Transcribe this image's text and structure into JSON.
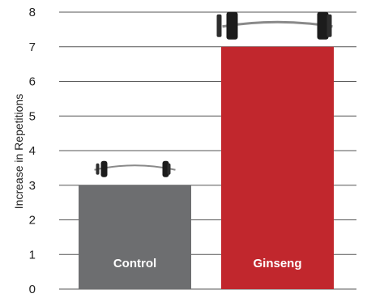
{
  "chart_data": {
    "type": "bar",
    "categories": [
      "Control",
      "Ginseng"
    ],
    "values": [
      3,
      7
    ],
    "ylabel": "Increase in Repetitions",
    "ylim": [
      0,
      8
    ],
    "y_ticks": [
      "0",
      "1",
      "2",
      "3",
      "4",
      "5",
      "6",
      "7",
      "8"
    ],
    "grid": true,
    "bar_colors": [
      "#6d6e70",
      "#c1272d"
    ],
    "bar_label_color": "#ffffff",
    "grid_color": "#555555",
    "decorations": [
      "barbell-icon",
      "barbell-icon"
    ]
  }
}
